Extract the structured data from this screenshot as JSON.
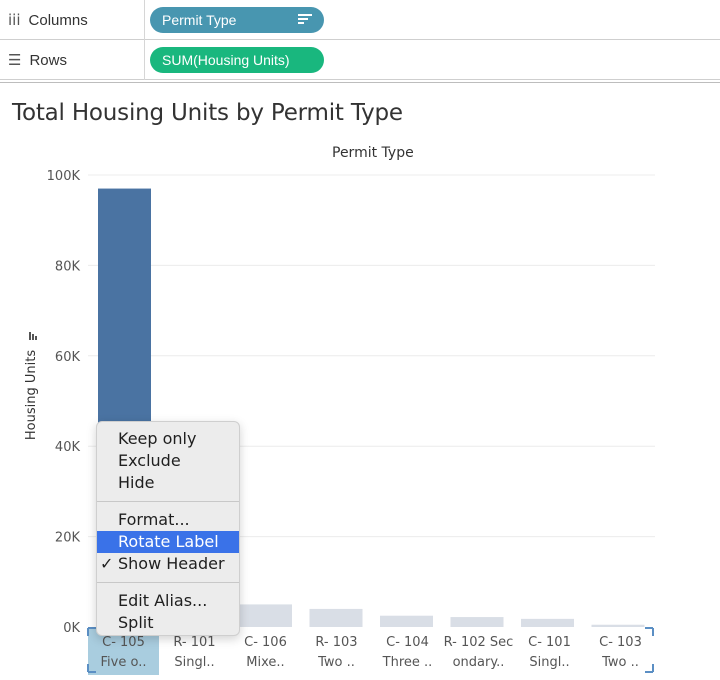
{
  "shelves": {
    "columns": {
      "icon": "columns-icon",
      "glyph": "iii",
      "label": "Columns",
      "pill": "Permit Type"
    },
    "rows": {
      "icon": "rows-icon",
      "glyph": "☰",
      "label": "Rows",
      "pill": "SUM(Housing Units)"
    }
  },
  "colors": {
    "dimension_pill": "#4896b0",
    "measure_pill": "#19b77e",
    "bar_selected": "#4a73a2",
    "bar_dimmed": "#d9dee6",
    "menu_highlight": "#3a72e8"
  },
  "sheet": {
    "title": "Total Housing Units by Permit Type",
    "column_header": "Permit Type"
  },
  "chart_data": {
    "type": "bar",
    "ylabel": "Housing Units",
    "ylim": [
      0,
      100000
    ],
    "yticks": [
      "100K",
      "80K",
      "60K",
      "40K",
      "20K",
      "0K"
    ],
    "grid": true,
    "categories": [
      "C-105 Five o..",
      "R-101 Singl..",
      "C-106 Mixe..",
      "R-103 Two ..",
      "C-104 Three ..",
      "R-102 Secondary..",
      "C-101 Singl..",
      "C-103 Two .."
    ],
    "category_lines": [
      [
        "C- 105",
        "Five o.."
      ],
      [
        "R- 101",
        "Singl.."
      ],
      [
        "C- 106",
        "Mixe.."
      ],
      [
        "R- 103",
        "Two .."
      ],
      [
        "C- 104",
        "Three .."
      ],
      [
        "R- 102 Sec",
        "ondary.."
      ],
      [
        "C- 101",
        "Singl.."
      ],
      [
        "C- 103",
        "Two .."
      ]
    ],
    "values": [
      97000,
      6000,
      5000,
      4000,
      2500,
      2200,
      1800,
      500
    ],
    "selected_index": 0
  },
  "context_menu": {
    "groups": [
      [
        {
          "label": "Keep only"
        },
        {
          "label": "Exclude"
        },
        {
          "label": "Hide"
        }
      ],
      [
        {
          "label": "Format..."
        },
        {
          "label": "Rotate Label",
          "active": true
        },
        {
          "label": "Show Header",
          "checked": true,
          "check_glyph": "✓"
        }
      ],
      [
        {
          "label": "Edit Alias..."
        },
        {
          "label": "Split"
        }
      ]
    ]
  }
}
